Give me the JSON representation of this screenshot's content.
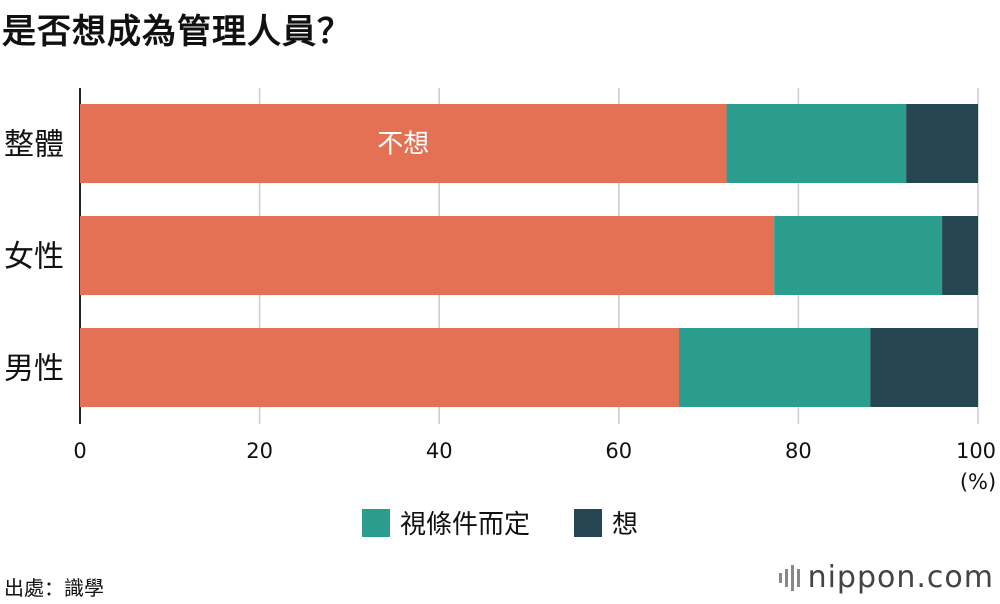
{
  "title": "是否想成為管理人員？",
  "source": "出處：識學",
  "logo": "nippon.com",
  "unit": "(%)",
  "colors": {
    "no": "#E57155",
    "depends": "#2A9D8F",
    "yes": "#264653",
    "grid": "#cccccc"
  },
  "chart_data": {
    "type": "bar",
    "orientation": "horizontal",
    "stacked": true,
    "categories": [
      "整體",
      "女性",
      "男性"
    ],
    "series": [
      {
        "name": "不想",
        "values": [
          72,
          77.3,
          66.7
        ]
      },
      {
        "name": "視條件而定",
        "values": [
          20,
          18.7,
          21.3
        ]
      },
      {
        "name": "想",
        "values": [
          8,
          4,
          12
        ]
      }
    ],
    "xlim": [
      0,
      100
    ],
    "xticks": [
      0,
      20,
      40,
      60,
      80,
      100
    ],
    "grid": true,
    "legend_position": "bottom",
    "inbar_label": {
      "category": "整體",
      "series": "不想",
      "text": "不想"
    }
  },
  "legend": [
    {
      "label": "視條件而定",
      "color": "#2A9D8F"
    },
    {
      "label": "想",
      "color": "#264653"
    }
  ]
}
